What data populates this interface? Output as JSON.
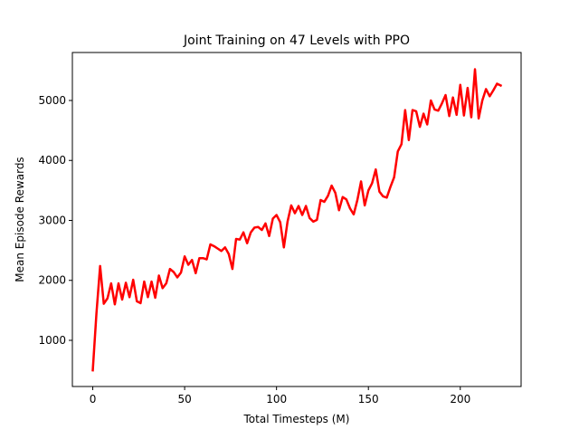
{
  "chart_data": {
    "type": "line",
    "title": "Joint Training on 47 Levels with PPO",
    "xlabel": "Total Timesteps (M)",
    "ylabel": "Mean Episode Rewards",
    "xlim": [
      -11.1,
      233.1
    ],
    "ylim": [
      230,
      5800
    ],
    "xticks": [
      0,
      50,
      100,
      150,
      200
    ],
    "yticks": [
      1000,
      2000,
      3000,
      4000,
      5000
    ],
    "grid": false,
    "legend": "none",
    "line_color": "#ff0000",
    "series": [
      {
        "x": [
          0,
          2,
          4,
          6,
          8,
          10,
          12,
          14,
          16,
          18,
          20,
          22,
          24,
          26,
          28,
          30,
          32,
          34,
          36,
          38,
          40,
          42,
          44,
          46,
          48,
          50,
          52,
          54,
          56,
          58,
          60,
          62,
          64,
          66,
          68,
          70,
          72,
          74,
          76,
          78,
          80,
          82,
          84,
          86,
          88,
          90,
          92,
          94,
          96,
          98,
          100,
          102,
          104,
          106,
          108,
          110,
          112,
          114,
          116,
          118,
          120,
          122,
          124,
          126,
          128,
          130,
          132,
          134,
          136,
          138,
          140,
          142,
          144,
          146,
          148,
          150,
          152,
          154,
          156,
          158,
          160,
          162,
          164,
          166,
          168,
          170,
          172,
          174,
          176,
          178,
          180,
          182,
          184,
          186,
          188,
          190,
          192,
          194,
          196,
          198,
          200,
          202,
          204,
          206,
          208,
          210,
          212,
          214,
          216,
          218,
          220,
          222
        ],
        "y": [
          500,
          1450,
          2240,
          1610,
          1700,
          1950,
          1600,
          1950,
          1680,
          1960,
          1720,
          2010,
          1650,
          1620,
          1980,
          1720,
          1980,
          1710,
          2080,
          1870,
          1950,
          2190,
          2140,
          2050,
          2130,
          2400,
          2260,
          2340,
          2120,
          2370,
          2370,
          2350,
          2600,
          2570,
          2530,
          2490,
          2550,
          2440,
          2190,
          2690,
          2680,
          2800,
          2620,
          2800,
          2880,
          2890,
          2840,
          2950,
          2740,
          3030,
          3090,
          2970,
          2550,
          2980,
          3250,
          3120,
          3240,
          3090,
          3240,
          3040,
          2980,
          3010,
          3340,
          3310,
          3410,
          3580,
          3460,
          3170,
          3390,
          3350,
          3200,
          3100,
          3340,
          3650,
          3250,
          3500,
          3620,
          3850,
          3480,
          3400,
          3380,
          3560,
          3720,
          4150,
          4270,
          4840,
          4340,
          4840,
          4820,
          4560,
          4780,
          4600,
          5000,
          4850,
          4830,
          4950,
          5090,
          4740,
          5050,
          4760,
          5260,
          4750,
          5210,
          4720,
          5520,
          4700,
          5000,
          5190,
          5070,
          5170,
          5280,
          5250
        ]
      }
    ]
  }
}
